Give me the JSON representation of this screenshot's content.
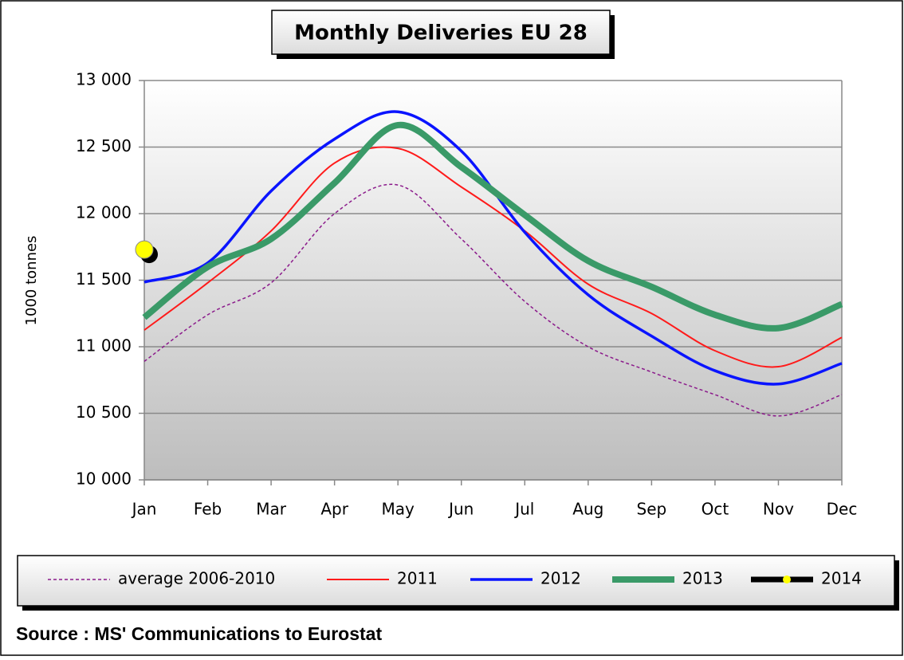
{
  "chart_data": {
    "type": "line",
    "title": "Monthly Deliveries EU 28",
    "y_label": "1000 tonnes",
    "source": "Source : MS' Communications to Eurostat",
    "categories": [
      "Jan",
      "Feb",
      "Mar",
      "Apr",
      "May",
      "Jun",
      "Jul",
      "Aug",
      "Sep",
      "Oct",
      "Nov",
      "Dec"
    ],
    "ylim": [
      10000,
      13000
    ],
    "yticks": [
      {
        "value": 10000,
        "label": "10 000"
      },
      {
        "value": 10500,
        "label": "10 500"
      },
      {
        "value": 11000,
        "label": "11 000"
      },
      {
        "value": 11500,
        "label": "11 500"
      },
      {
        "value": 12000,
        "label": "12 000"
      },
      {
        "value": 12500,
        "label": "12 500"
      },
      {
        "value": 13000,
        "label": "13 000"
      }
    ],
    "grid": true,
    "smooth": true,
    "series": [
      {
        "name": "average 2006-2010",
        "color": "#8b1a8b",
        "dashed": true,
        "values": [
          10890,
          11240,
          11480,
          12000,
          12215,
          11810,
          11340,
          11000,
          10810,
          10640,
          10480,
          10640
        ]
      },
      {
        "name": "2011",
        "color": "#ff1a1a",
        "values": [
          11125,
          11480,
          11870,
          12380,
          12490,
          12200,
          11870,
          11470,
          11250,
          10970,
          10850,
          11070
        ]
      },
      {
        "name": "2012",
        "color": "#0a14ff",
        "values": [
          11485,
          11630,
          12170,
          12560,
          12765,
          12470,
          11860,
          11390,
          11080,
          10820,
          10720,
          10875
        ]
      },
      {
        "name": "2013",
        "color": "#3a9a68",
        "values": [
          11220,
          11600,
          11810,
          12230,
          12665,
          12350,
          11990,
          11645,
          11450,
          11240,
          11140,
          11320
        ]
      },
      {
        "name": "2014",
        "color": "#000000",
        "marker_color": "#ffff00",
        "values": [
          11730,
          null,
          null,
          null,
          null,
          null,
          null,
          null,
          null,
          null,
          null,
          null
        ]
      }
    ]
  }
}
